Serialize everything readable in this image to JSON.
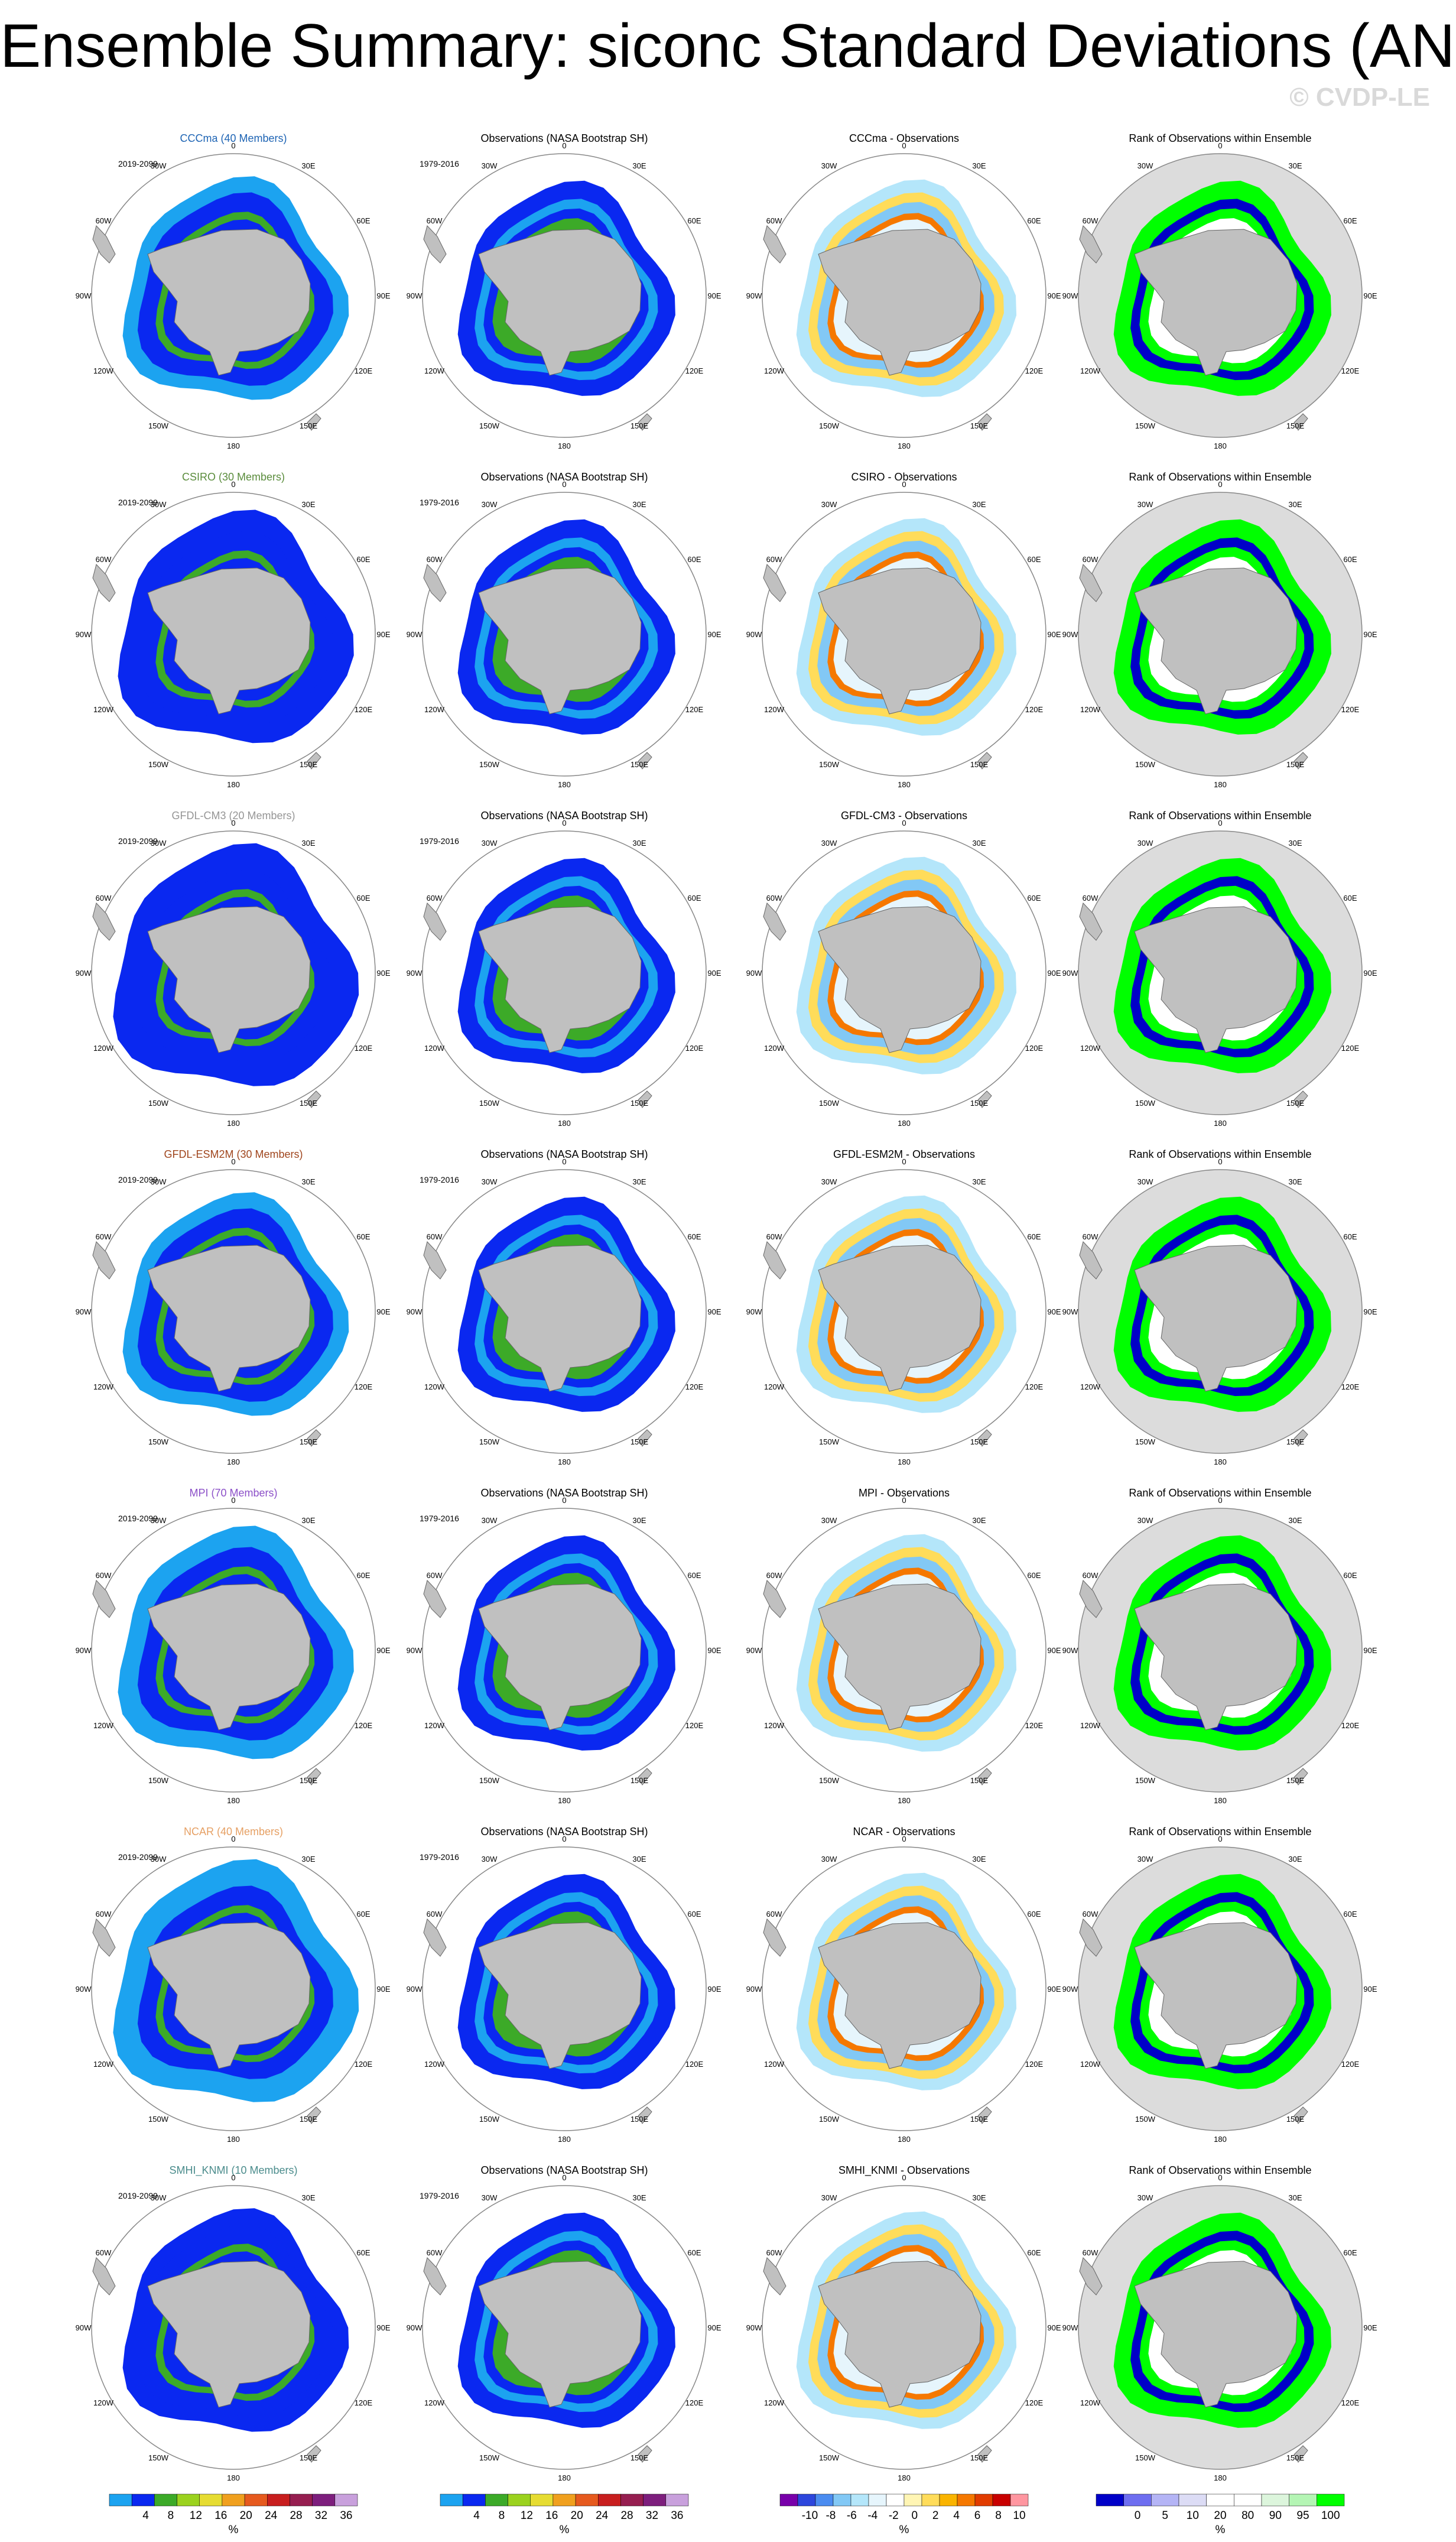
{
  "title": "Ensemble Summary: siconc Standard Deviations (ANN)",
  "watermark": "© CVDP-LE",
  "colors": {
    "land": "#c0c0c0",
    "ocean_rank_bg": "#dcdcdc",
    "std_scale": [
      "#1ca3f0",
      "#0a28f0",
      "#3caa28",
      "#9bd21e",
      "#e6dc32",
      "#f0a01e",
      "#e65a1e",
      "#c81e1e",
      "#961e50",
      "#7d1e7d",
      "#c8a0dc"
    ],
    "diff_scale": [
      "#7800aa",
      "#2d46dc",
      "#4b8cf0",
      "#82c8f5",
      "#b4e6fa",
      "#e6f5fc",
      "#ffffff",
      "#fff5b4",
      "#ffdc5a",
      "#fab400",
      "#f57800",
      "#e13c00",
      "#c80000",
      "#ff96a0"
    ],
    "rank_scale": [
      "#0000c8",
      "#6e6ef0",
      "#b4b4f5",
      "#dcdcf5",
      "#ffffff",
      "#ffffff",
      "#dcf5dc",
      "#b4f5b4",
      "#00ff00"
    ]
  },
  "lon_labels": [
    "0",
    "30E",
    "60E",
    "90E",
    "120E",
    "150E",
    "180",
    "150W",
    "120W",
    "90W",
    "60W",
    "30W"
  ],
  "obs_title": "Observations (NASA Bootstrap SH)",
  "rank_title": "Rank of Observations within Ensemble",
  "model_period": "2019-2099",
  "obs_period": "1979-2016",
  "rows": [
    {
      "model": "CCCma (40 Members)",
      "diff_title": "CCCma - Observations",
      "title_color": "#1e64b4"
    },
    {
      "model": "CSIRO (30 Members)",
      "diff_title": "CSIRO - Observations",
      "title_color": "#5a8c3c"
    },
    {
      "model": "GFDL-CM3 (20 Members)",
      "diff_title": "GFDL-CM3 - Observations",
      "title_color": "#969696"
    },
    {
      "model": "GFDL-ESM2M (30 Members)",
      "diff_title": "GFDL-ESM2M - Observations",
      "title_color": "#a0461e"
    },
    {
      "model": "MPI (70 Members)",
      "diff_title": "MPI - Observations",
      "title_color": "#8c50c8"
    },
    {
      "model": "NCAR (40 Members)",
      "diff_title": "NCAR - Observations",
      "title_color": "#e6a064"
    },
    {
      "model": "SMHI_KNMI (10 Members)",
      "diff_title": "SMHI_KNMI - Observations",
      "title_color": "#4b8c8c"
    }
  ],
  "colorbars": [
    {
      "labels": [
        "4",
        "8",
        "12",
        "16",
        "20",
        "24",
        "28",
        "32",
        "36"
      ],
      "unit": "%"
    },
    {
      "labels": [
        "4",
        "8",
        "12",
        "16",
        "20",
        "24",
        "28",
        "32",
        "36"
      ],
      "unit": "%"
    },
    {
      "labels": [
        "-10",
        "-8",
        "-6",
        "-4",
        "-2",
        "0",
        "2",
        "4",
        "6",
        "8",
        "10"
      ],
      "unit": "%"
    },
    {
      "labels": [
        "0",
        "5",
        "10",
        "20",
        "80",
        "90",
        "95",
        "100"
      ],
      "unit": "%"
    }
  ]
}
